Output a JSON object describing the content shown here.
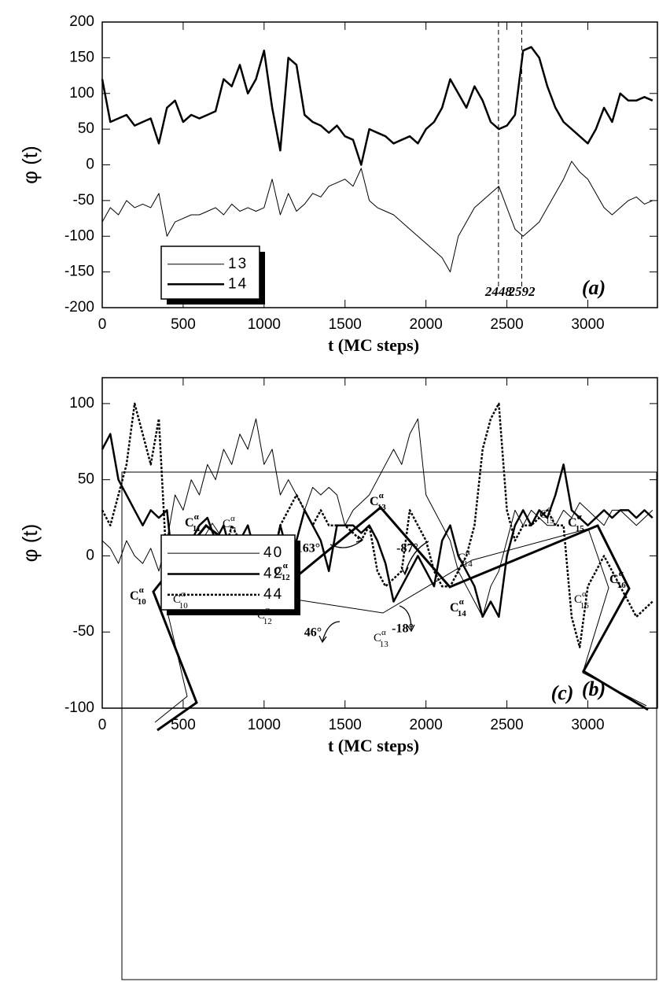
{
  "chart_data": [
    {
      "type": "line",
      "panel_label": "(a)",
      "xlabel": "t (MC steps)",
      "ylabel": "φ (t)",
      "xlim": [
        0,
        3430
      ],
      "ylim": [
        -200,
        200
      ],
      "xticks": [
        0,
        500,
        1000,
        1500,
        2000,
        2500,
        3000
      ],
      "yticks": [
        -200,
        -150,
        -100,
        -50,
        0,
        50,
        100,
        150,
        200
      ],
      "vlines": [
        2448,
        2592
      ],
      "x": [
        0,
        50,
        100,
        150,
        200,
        250,
        300,
        350,
        400,
        450,
        500,
        550,
        600,
        650,
        700,
        750,
        800,
        850,
        900,
        950,
        1000,
        1050,
        1100,
        1150,
        1200,
        1250,
        1300,
        1350,
        1400,
        1450,
        1500,
        1550,
        1600,
        1650,
        1700,
        1750,
        1800,
        1850,
        1900,
        1950,
        2000,
        2050,
        2100,
        2150,
        2200,
        2250,
        2300,
        2350,
        2400,
        2450,
        2500,
        2550,
        2600,
        2650,
        2700,
        2750,
        2800,
        2850,
        2900,
        2950,
        3000,
        3050,
        3100,
        3150,
        3200,
        3250,
        3300,
        3350,
        3400
      ],
      "series": [
        {
          "name": "13",
          "color": "#000000",
          "line_width": 1,
          "values": [
            -80,
            -60,
            -70,
            -50,
            -60,
            -55,
            -60,
            -40,
            -100,
            -80,
            -75,
            -70,
            -70,
            -65,
            -60,
            -70,
            -55,
            -65,
            -60,
            -65,
            -60,
            -20,
            -70,
            -40,
            -65,
            -55,
            -40,
            -45,
            -30,
            -25,
            -20,
            -30,
            -5,
            -50,
            -60,
            -65,
            -70,
            -80,
            -90,
            -100,
            -110,
            -120,
            -130,
            -150,
            -100,
            -80,
            -60,
            -50,
            -40,
            -30,
            -60,
            -90,
            -100,
            -90,
            -80,
            -60,
            -40,
            -20,
            5,
            -10,
            -20,
            -40,
            -60,
            -70,
            -60,
            -50,
            -45,
            -55,
            -50
          ]
        },
        {
          "name": "14",
          "color": "#000000",
          "line_width": 2.5,
          "values": [
            120,
            60,
            65,
            70,
            55,
            60,
            65,
            30,
            80,
            90,
            60,
            70,
            65,
            70,
            75,
            120,
            110,
            140,
            100,
            120,
            160,
            80,
            20,
            150,
            140,
            70,
            60,
            55,
            45,
            55,
            40,
            35,
            0,
            50,
            45,
            40,
            30,
            35,
            40,
            30,
            50,
            60,
            80,
            120,
            100,
            80,
            110,
            90,
            60,
            50,
            55,
            70,
            160,
            165,
            150,
            110,
            80,
            60,
            50,
            40,
            30,
            50,
            80,
            60,
            100,
            90,
            90,
            95,
            90
          ]
        }
      ]
    },
    {
      "type": "line",
      "panel_label": "(b)",
      "xlabel": "t (MC steps)",
      "ylabel": "φ (t)",
      "xlim": [
        0,
        3430
      ],
      "ylim": [
        -100,
        117
      ],
      "xticks": [
        0,
        500,
        1000,
        1500,
        2000,
        2500,
        3000
      ],
      "yticks": [
        -100,
        -50,
        0,
        50,
        100
      ],
      "x": [
        0,
        50,
        100,
        150,
        200,
        250,
        300,
        350,
        400,
        450,
        500,
        550,
        600,
        650,
        700,
        750,
        800,
        850,
        900,
        950,
        1000,
        1050,
        1100,
        1150,
        1200,
        1250,
        1300,
        1350,
        1400,
        1450,
        1500,
        1550,
        1600,
        1650,
        1700,
        1750,
        1800,
        1850,
        1900,
        1950,
        2000,
        2050,
        2100,
        2150,
        2200,
        2250,
        2300,
        2350,
        2400,
        2450,
        2500,
        2550,
        2600,
        2650,
        2700,
        2750,
        2800,
        2850,
        2900,
        2950,
        3000,
        3050,
        3100,
        3150,
        3200,
        3250,
        3300,
        3350,
        3400
      ],
      "series": [
        {
          "name": "40",
          "color": "#000000",
          "line_width": 1,
          "values": [
            10,
            5,
            -5,
            10,
            0,
            -5,
            5,
            -10,
            10,
            40,
            30,
            50,
            40,
            60,
            50,
            70,
            60,
            80,
            70,
            90,
            60,
            70,
            40,
            50,
            40,
            30,
            45,
            40,
            45,
            40,
            20,
            30,
            35,
            40,
            50,
            60,
            70,
            60,
            80,
            90,
            40,
            30,
            20,
            10,
            -10,
            -20,
            -30,
            -40,
            -20,
            -10,
            10,
            30,
            20,
            30,
            25,
            20,
            20,
            30,
            25,
            35,
            30,
            25,
            20,
            30,
            30,
            25,
            20,
            25,
            30
          ]
        },
        {
          "name": "42",
          "color": "#000000",
          "line_width": 2.5,
          "values": [
            70,
            80,
            50,
            40,
            30,
            20,
            30,
            25,
            30,
            -20,
            0,
            10,
            20,
            25,
            10,
            20,
            0,
            10,
            20,
            0,
            10,
            -5,
            20,
            0,
            10,
            30,
            20,
            10,
            -10,
            20,
            20,
            20,
            15,
            20,
            10,
            -5,
            -30,
            -20,
            -10,
            0,
            -10,
            -20,
            10,
            20,
            0,
            -10,
            -20,
            -40,
            -30,
            -40,
            0,
            20,
            30,
            20,
            30,
            25,
            40,
            60,
            30,
            25,
            20,
            25,
            30,
            25,
            30,
            30,
            25,
            30,
            25
          ]
        },
        {
          "name": "44",
          "color": "#000000",
          "line_width": 2.5,
          "dash": "3,2",
          "values": [
            30,
            20,
            40,
            60,
            100,
            80,
            60,
            90,
            -10,
            0,
            -10,
            -15,
            0,
            10,
            -5,
            0,
            20,
            10,
            -10,
            0,
            0,
            -5,
            20,
            30,
            40,
            30,
            20,
            30,
            20,
            20,
            20,
            15,
            10,
            20,
            -10,
            -20,
            -15,
            -10,
            30,
            20,
            10,
            -10,
            -20,
            -20,
            -10,
            0,
            20,
            70,
            90,
            100,
            30,
            10,
            20,
            20,
            25,
            30,
            20,
            20,
            -40,
            -60,
            -20,
            -10,
            0,
            -10,
            -20,
            -30,
            -40,
            -35,
            -30
          ]
        }
      ]
    }
  ],
  "diagram": {
    "panel_label": "(c)",
    "thick_labels": [
      {
        "base": "C",
        "sup": "α",
        "sub": "10"
      },
      {
        "base": "C",
        "sup": "α",
        "sub": "11"
      },
      {
        "base": "C",
        "sup": "α",
        "sub": "12"
      },
      {
        "base": "C",
        "sup": "α",
        "sub": "13"
      },
      {
        "base": "C",
        "sup": "α",
        "sub": "14"
      },
      {
        "base": "C",
        "sup": "α",
        "sub": "15"
      },
      {
        "base": "C",
        "sup": "α",
        "sub": "16"
      }
    ],
    "thin_labels": [
      {
        "base": "C",
        "sup": "α",
        "sub": "10"
      },
      {
        "base": "C",
        "sup": "α",
        "sub": "11"
      },
      {
        "base": "C",
        "sup": "α",
        "sub": "12"
      },
      {
        "base": "C",
        "sup": "α",
        "sub": "13"
      },
      {
        "base": "C",
        "sup": "α",
        "sub": "14"
      },
      {
        "base": "C",
        "sup": "α",
        "sub": "15"
      },
      {
        "base": "C",
        "sup": "α",
        "sub": "16"
      }
    ],
    "angles": [
      "163°",
      "-87°",
      "46°",
      "-18°"
    ]
  }
}
